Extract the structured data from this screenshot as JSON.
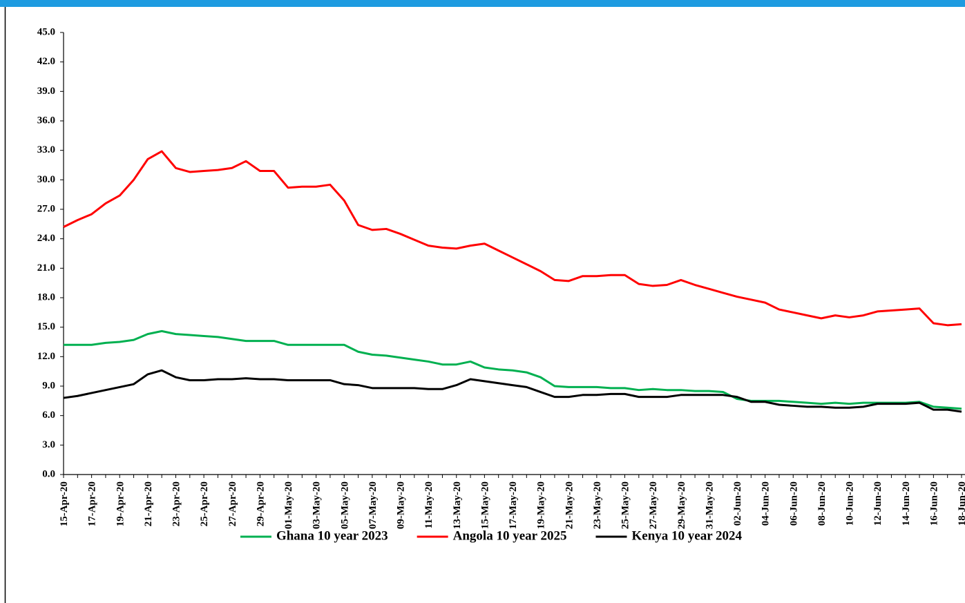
{
  "chart_data": {
    "type": "line",
    "categories": [
      "15-Apr-20",
      null,
      "17-Apr-20",
      null,
      "19-Apr-20",
      null,
      "21-Apr-20",
      null,
      "23-Apr-20",
      null,
      "25-Apr-20",
      null,
      "27-Apr-20",
      null,
      "29-Apr-20",
      null,
      "01-May-20",
      null,
      "03-May-20",
      null,
      "05-May-20",
      null,
      "07-May-20",
      null,
      "09-May-20",
      null,
      "11-May-20",
      null,
      "13-May-20",
      null,
      "15-May-20",
      null,
      "17-May-20",
      null,
      "19-May-20",
      null,
      "21-May-20",
      null,
      "23-May-20",
      null,
      "25-May-20",
      null,
      "27-May-20",
      null,
      "29-May-20",
      null,
      "31-May-20",
      null,
      "02-Jun-20",
      null,
      "04-Jun-20",
      null,
      "06-Jun-20",
      null,
      "08-Jun-20",
      null,
      "10-Jun-20",
      null,
      "12-Jun-20",
      null,
      "14-Jun-20",
      null,
      "16-Jun-20",
      null,
      "18-Jun-20"
    ],
    "series": [
      {
        "name": "Ghana 10 year 2023",
        "color": "#00b050",
        "values": [
          13.2,
          13.2,
          13.2,
          13.4,
          13.5,
          13.7,
          14.3,
          14.6,
          14.3,
          14.2,
          14.1,
          14.0,
          13.8,
          13.6,
          13.6,
          13.6,
          13.2,
          13.2,
          13.2,
          13.2,
          13.2,
          12.5,
          12.2,
          12.1,
          11.9,
          11.7,
          11.5,
          11.2,
          11.2,
          11.5,
          10.9,
          10.7,
          10.6,
          10.4,
          9.9,
          9.0,
          8.9,
          8.9,
          8.9,
          8.8,
          8.8,
          8.6,
          8.7,
          8.6,
          8.6,
          8.5,
          8.5,
          8.4,
          7.7,
          7.5,
          7.5,
          7.5,
          7.4,
          7.3,
          7.2,
          7.3,
          7.2,
          7.3,
          7.3,
          7.3,
          7.3,
          7.4,
          6.9,
          6.8,
          6.7
        ]
      },
      {
        "name": "Angola 10 year 2025",
        "color": "#ff0000",
        "values": [
          25.2,
          25.9,
          26.5,
          27.6,
          28.4,
          30.0,
          32.1,
          32.9,
          31.2,
          30.8,
          30.9,
          31.0,
          31.2,
          31.9,
          30.9,
          30.9,
          29.2,
          29.3,
          29.3,
          29.5,
          27.9,
          25.4,
          24.9,
          25.0,
          24.5,
          23.9,
          23.3,
          23.1,
          23.0,
          23.3,
          23.5,
          22.8,
          22.1,
          21.4,
          20.7,
          19.8,
          19.7,
          20.2,
          20.2,
          20.3,
          20.3,
          19.4,
          19.2,
          19.3,
          19.8,
          19.3,
          18.9,
          18.5,
          18.1,
          17.8,
          17.5,
          16.8,
          16.5,
          16.2,
          15.9,
          16.2,
          16.0,
          16.2,
          16.6,
          16.7,
          16.8,
          16.9,
          15.4,
          15.2,
          15.3
        ]
      },
      {
        "name": "Kenya 10 year 2024",
        "color": "#000000",
        "values": [
          7.8,
          8.0,
          8.3,
          8.6,
          8.9,
          9.2,
          10.2,
          10.6,
          9.9,
          9.6,
          9.6,
          9.7,
          9.7,
          9.8,
          9.7,
          9.7,
          9.6,
          9.6,
          9.6,
          9.6,
          9.2,
          9.1,
          8.8,
          8.8,
          8.8,
          8.8,
          8.7,
          8.7,
          9.1,
          9.7,
          9.5,
          9.3,
          9.1,
          8.9,
          8.4,
          7.9,
          7.9,
          8.1,
          8.1,
          8.2,
          8.2,
          7.9,
          7.9,
          7.9,
          8.1,
          8.1,
          8.1,
          8.1,
          7.9,
          7.4,
          7.4,
          7.1,
          7.0,
          6.9,
          6.9,
          6.8,
          6.8,
          6.9,
          7.2,
          7.2,
          7.2,
          7.3,
          6.6,
          6.6,
          6.4
        ]
      }
    ],
    "ylim": [
      0,
      45
    ],
    "yticks": [
      {
        "value": 0,
        "label": "0.0"
      },
      {
        "value": 3,
        "label": "3.0"
      },
      {
        "value": 6,
        "label": "6.0"
      },
      {
        "value": 9,
        "label": "9.0"
      },
      {
        "value": 12,
        "label": "12.0"
      },
      {
        "value": 15,
        "label": "15.0"
      },
      {
        "value": 18,
        "label": "18.0"
      },
      {
        "value": 21,
        "label": "21.0"
      },
      {
        "value": 24,
        "label": "24.0"
      },
      {
        "value": 27,
        "label": "27.0"
      },
      {
        "value": 30,
        "label": "30.0"
      },
      {
        "value": 33,
        "label": "33.0"
      },
      {
        "value": 36,
        "label": "36.0"
      },
      {
        "value": 39,
        "label": "39.0"
      },
      {
        "value": 42,
        "label": "42.0"
      },
      {
        "value": 45,
        "label": "45.0"
      }
    ],
    "grid": false,
    "legend": "bottom"
  }
}
